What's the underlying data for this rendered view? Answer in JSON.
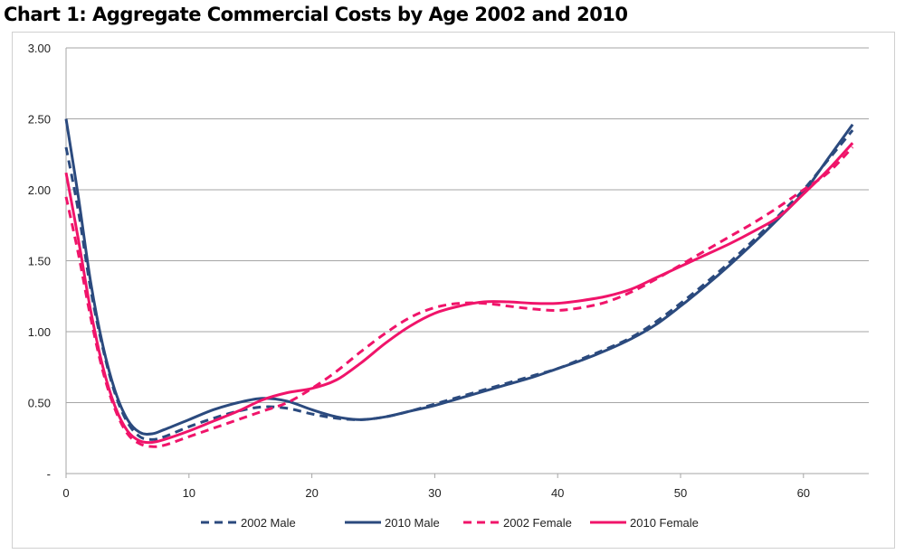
{
  "chart_data": {
    "type": "line",
    "title": "Chart 1: Aggregate Commercial Costs by Age 2002 and 2010",
    "xlabel": "",
    "ylabel": "",
    "xlim": [
      0,
      64
    ],
    "ylim": [
      0,
      3
    ],
    "x_ticks": [
      "0",
      "10",
      "20",
      "30",
      "40",
      "50",
      "60"
    ],
    "x_tick_values": [
      0,
      10,
      20,
      30,
      40,
      50,
      60
    ],
    "y_ticks": [
      "-",
      "0.50",
      "1.00",
      "1.50",
      "2.00",
      "2.50",
      "3.00"
    ],
    "y_tick_values": [
      0,
      0.5,
      1,
      1.5,
      2,
      2.5,
      3
    ],
    "grid": "horizontal",
    "legend_position": "bottom",
    "x": [
      0,
      1,
      2,
      3,
      4,
      5,
      6,
      7,
      8,
      10,
      12,
      14,
      16,
      18,
      20,
      22,
      24,
      26,
      28,
      30,
      32,
      34,
      36,
      38,
      40,
      42,
      44,
      46,
      48,
      50,
      52,
      54,
      56,
      58,
      60,
      62,
      64
    ],
    "series": [
      {
        "name": "2002 Male",
        "color": "#2b4a7e",
        "dash": true,
        "values": [
          2.3,
          1.85,
          1.3,
          0.88,
          0.56,
          0.36,
          0.26,
          0.24,
          0.26,
          0.33,
          0.39,
          0.44,
          0.47,
          0.46,
          0.42,
          0.39,
          0.38,
          0.4,
          0.44,
          0.49,
          0.54,
          0.59,
          0.64,
          0.69,
          0.74,
          0.81,
          0.88,
          0.96,
          1.07,
          1.2,
          1.34,
          1.49,
          1.65,
          1.82,
          2.0,
          2.21,
          2.42
        ]
      },
      {
        "name": "2010 Male",
        "color": "#2b4a7e",
        "dash": false,
        "values": [
          2.5,
          1.95,
          1.35,
          0.9,
          0.58,
          0.38,
          0.29,
          0.28,
          0.31,
          0.38,
          0.45,
          0.5,
          0.53,
          0.51,
          0.45,
          0.4,
          0.38,
          0.4,
          0.44,
          0.48,
          0.53,
          0.58,
          0.63,
          0.68,
          0.74,
          0.8,
          0.87,
          0.95,
          1.05,
          1.18,
          1.32,
          1.47,
          1.63,
          1.8,
          1.98,
          2.22,
          2.46
        ]
      },
      {
        "name": "2002 Female",
        "color": "#f0146a",
        "dash": true,
        "values": [
          1.95,
          1.55,
          1.1,
          0.72,
          0.45,
          0.28,
          0.21,
          0.19,
          0.2,
          0.26,
          0.32,
          0.38,
          0.44,
          0.5,
          0.6,
          0.72,
          0.86,
          0.99,
          1.1,
          1.17,
          1.2,
          1.2,
          1.18,
          1.16,
          1.15,
          1.17,
          1.21,
          1.28,
          1.37,
          1.47,
          1.57,
          1.67,
          1.77,
          1.88,
          2.0,
          2.12,
          2.3
        ]
      },
      {
        "name": "2010 Female",
        "color": "#f0146a",
        "dash": false,
        "values": [
          2.12,
          1.65,
          1.15,
          0.75,
          0.47,
          0.3,
          0.23,
          0.22,
          0.24,
          0.3,
          0.37,
          0.44,
          0.52,
          0.57,
          0.6,
          0.66,
          0.78,
          0.92,
          1.04,
          1.13,
          1.18,
          1.21,
          1.21,
          1.2,
          1.2,
          1.22,
          1.25,
          1.3,
          1.38,
          1.46,
          1.54,
          1.62,
          1.71,
          1.81,
          1.97,
          2.14,
          2.33
        ]
      }
    ]
  }
}
